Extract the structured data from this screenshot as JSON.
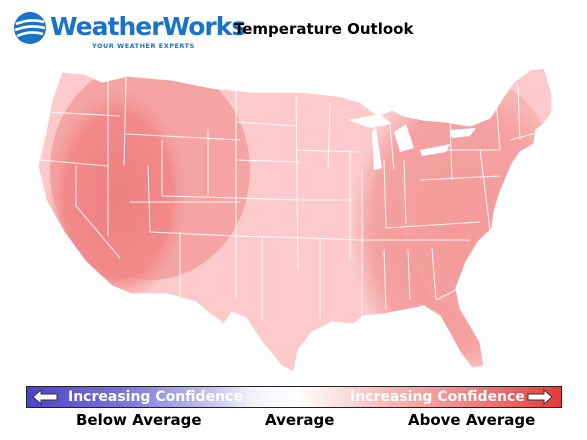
{
  "brand": {
    "name": "WeatherWorks",
    "tagline": "YOUR WEATHER EXPERTS",
    "color": "#1a73c9"
  },
  "title": "Temperature Outlook",
  "map": {
    "region": "contiguous United States",
    "colors": {
      "above_average_light": "#fccaca",
      "above_average_medium": "#f5a3a3",
      "above_average_strong": "#ef7f7f",
      "state_border": "#7a3a3a"
    },
    "zones": [
      {
        "area": "West Coast interior and Southwest",
        "category": "Above Average",
        "confidence": "higher"
      },
      {
        "area": "Northern Rockies and Great Plains",
        "category": "Above Average",
        "confidence": "moderate"
      },
      {
        "area": "Central US and Upper Midwest",
        "category": "Above Average",
        "confidence": "low"
      },
      {
        "area": "Southeast and East Coast",
        "category": "Above Average",
        "confidence": "moderate"
      }
    ]
  },
  "legend": {
    "left_text": "Increasing Confidence",
    "right_text": "Increasing Confidence",
    "labels": {
      "below": "Below Average",
      "average": "Average",
      "above": "Above Average"
    },
    "colors": {
      "below": "#4b43c8",
      "average": "#ffffff",
      "above": "#e33a3a"
    }
  }
}
